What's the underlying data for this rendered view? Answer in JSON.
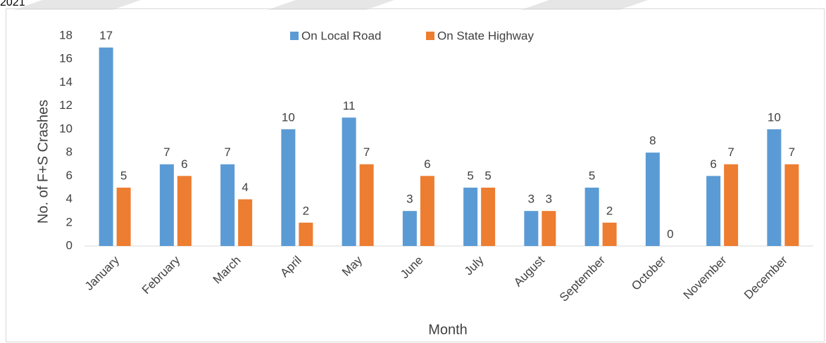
{
  "header": {
    "text": "2021"
  },
  "chart_data": {
    "type": "bar",
    "y_label": "No. of F+S Crashes",
    "x_label": "Month",
    "categories": [
      "January",
      "February",
      "March",
      "April",
      "May",
      "June",
      "July",
      "August",
      "September",
      "October",
      "November",
      "December"
    ],
    "series": [
      {
        "name": "On Local Road",
        "color": "#5b9bd5",
        "values": [
          17,
          7,
          7,
          10,
          11,
          3,
          5,
          3,
          5,
          8,
          6,
          10
        ]
      },
      {
        "name": "On State Highway",
        "color": "#ed7d31",
        "values": [
          5,
          6,
          4,
          2,
          7,
          6,
          5,
          3,
          2,
          0,
          7,
          7
        ]
      }
    ],
    "ylim": [
      0,
      18
    ],
    "yticks": [
      0,
      2,
      4,
      6,
      8,
      10,
      12,
      14,
      16,
      18
    ],
    "grid": false,
    "legend": "top"
  }
}
